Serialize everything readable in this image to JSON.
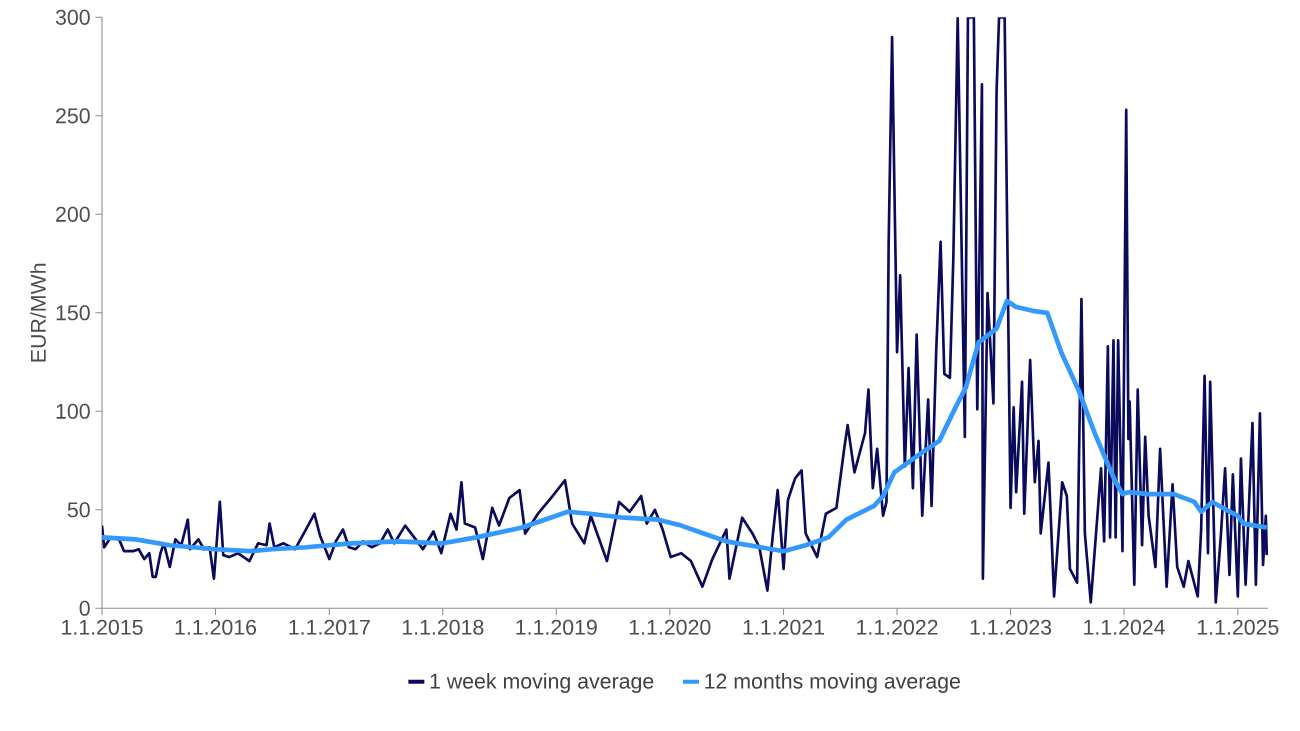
{
  "chart_data": {
    "type": "line",
    "ylabel": "EUR/MWh",
    "xlim": [
      "2015-01-01",
      "2025-04-08"
    ],
    "ylim": [
      0,
      300
    ],
    "xticks": [
      {
        "value": "2015-01-01",
        "label": "1.1.2015"
      },
      {
        "value": "2016-01-01",
        "label": "1.1.2016"
      },
      {
        "value": "2017-01-01",
        "label": "1.1.2017"
      },
      {
        "value": "2018-01-01",
        "label": "1.1.2018"
      },
      {
        "value": "2019-01-01",
        "label": "1.1.2019"
      },
      {
        "value": "2020-01-01",
        "label": "1.1.2020"
      },
      {
        "value": "2021-01-01",
        "label": "1.1.2021"
      },
      {
        "value": "2022-01-01",
        "label": "1.1.2022"
      },
      {
        "value": "2023-01-01",
        "label": "1.1.2023"
      },
      {
        "value": "2024-01-01",
        "label": "1.1.2024"
      },
      {
        "value": "2025-01-01",
        "label": "1.1.2025"
      }
    ],
    "yticks": [
      0,
      50,
      100,
      150,
      200,
      250,
      300
    ],
    "grid": false,
    "legend": "bottom",
    "series": [
      {
        "name": "1 week moving average",
        "color": "#0b0b5c",
        "x": [
          "2015-01-01",
          "2015-01-08",
          "2015-01-29",
          "2015-02-25",
          "2015-03-13",
          "2015-04-11",
          "2015-04-29",
          "2015-05-17",
          "2015-06-02",
          "2015-06-13",
          "2015-06-23",
          "2015-07-08",
          "2015-07-19",
          "2015-08-07",
          "2015-08-25",
          "2015-09-13",
          "2015-10-04",
          "2015-10-11",
          "2015-11-07",
          "2015-11-25",
          "2015-12-13",
          "2015-12-27",
          "2016-01-08",
          "2016-01-15",
          "2016-01-26",
          "2016-02-14",
          "2016-03-13",
          "2016-04-19",
          "2016-05-17",
          "2016-06-13",
          "2016-06-23",
          "2016-07-08",
          "2016-08-07",
          "2016-09-13",
          "2016-10-11",
          "2016-11-14",
          "2016-12-02",
          "2017-01-01",
          "2017-01-22",
          "2017-02-14",
          "2017-03-05",
          "2017-03-27",
          "2017-04-19",
          "2017-05-17",
          "2017-06-13",
          "2017-07-08",
          "2017-07-29",
          "2017-09-02",
          "2017-10-01",
          "2017-10-29",
          "2017-12-02",
          "2017-12-27",
          "2018-01-26",
          "2018-02-14",
          "2018-03-02",
          "2018-03-13",
          "2018-04-15",
          "2018-05-10",
          "2018-06-09",
          "2018-07-01",
          "2018-08-03",
          "2018-09-05",
          "2018-09-23",
          "2018-11-03",
          "2018-12-20",
          "2019-01-29",
          "2019-02-21",
          "2019-04-01",
          "2019-04-22",
          "2019-06-13",
          "2019-07-22",
          "2019-08-25",
          "2019-10-01",
          "2019-10-19",
          "2019-11-14",
          "2019-12-09",
          "2020-01-04",
          "2020-02-07",
          "2020-03-09",
          "2020-04-15",
          "2020-05-17",
          "2020-07-01",
          "2020-07-11",
          "2020-08-21",
          "2020-09-23",
          "2020-10-15",
          "2020-11-10",
          "2020-11-28",
          "2020-12-13",
          "2021-01-01",
          "2021-01-15",
          "2021-02-07",
          "2021-02-28",
          "2021-03-13",
          "2021-04-19",
          "2021-05-17",
          "2021-06-20",
          "2021-07-15",
          "2021-07-26",
          "2021-08-17",
          "2021-09-20",
          "2021-10-01",
          "2021-10-15",
          "2021-10-29",
          "2021-11-17",
          "2021-11-28",
          "2021-12-05",
          "2021-12-16",
          "2021-12-23",
          "2022-01-01",
          "2022-01-11",
          "2022-01-26",
          "2022-02-07",
          "2022-02-21",
          "2022-03-05",
          "2022-03-23",
          "2022-04-11",
          "2022-04-22",
          "2022-05-07",
          "2022-05-21",
          "2022-06-02",
          "2022-06-20",
          "2022-07-01",
          "2022-07-15",
          "2022-08-07",
          "2022-08-17",
          "2022-09-05",
          "2022-09-16",
          "2022-10-01",
          "2022-10-04",
          "2022-10-19",
          "2022-11-07",
          "2022-11-17",
          "2022-11-25",
          "2022-12-13",
          "2023-01-01",
          "2023-01-11",
          "2023-01-19",
          "2023-02-07",
          "2023-02-14",
          "2023-03-05",
          "2023-03-20",
          "2023-04-01",
          "2023-04-08",
          "2023-05-03",
          "2023-05-21",
          "2023-06-16",
          "2023-07-01",
          "2023-07-11",
          "2023-08-03",
          "2023-08-17",
          "2023-08-28",
          "2023-09-16",
          "2023-10-01",
          "2023-10-19",
          "2023-10-29",
          "2023-11-10",
          "2023-11-17",
          "2023-11-28",
          "2023-12-05",
          "2023-12-13",
          "2023-12-27",
          "2024-01-08",
          "2024-01-15",
          "2024-01-19",
          "2024-02-03",
          "2024-02-14",
          "2024-02-28",
          "2024-03-09",
          "2024-03-20",
          "2024-04-11",
          "2024-04-26",
          "2024-05-17",
          "2024-06-05",
          "2024-06-20",
          "2024-07-11",
          "2024-07-26",
          "2024-08-25",
          "2024-09-05",
          "2024-09-16",
          "2024-09-27",
          "2024-10-04",
          "2024-10-22",
          "2024-11-07",
          "2024-11-21",
          "2024-12-05",
          "2024-12-16",
          "2025-01-01",
          "2025-01-11",
          "2025-01-26",
          "2025-02-17",
          "2025-02-28",
          "2025-03-13",
          "2025-03-23",
          "2025-04-01",
          "2025-04-04"
        ],
        "values": [
          42,
          31,
          36,
          35,
          29,
          29,
          30,
          25,
          28,
          16,
          16,
          28,
          33,
          21,
          35,
          32,
          45,
          30,
          35,
          30,
          31,
          15,
          40,
          54,
          27,
          26,
          28,
          24,
          33,
          32,
          43,
          31,
          33,
          30,
          38,
          48,
          37,
          25,
          34,
          40,
          31,
          30,
          34,
          31,
          33,
          40,
          33,
          42,
          36,
          30,
          39,
          28,
          48,
          40,
          64,
          43,
          41,
          25,
          51,
          42,
          56,
          60,
          38,
          48,
          57,
          65,
          43,
          33,
          47,
          24,
          54,
          49,
          57,
          43,
          50,
          40,
          26,
          28,
          24,
          11,
          25,
          40,
          15,
          46,
          38,
          31,
          9,
          38,
          60,
          20,
          55,
          66,
          70,
          38,
          26,
          48,
          51,
          81,
          93,
          69,
          89,
          111,
          61,
          81,
          47,
          54,
          186,
          290,
          218,
          130,
          169,
          72,
          122,
          61,
          139,
          47,
          106,
          52,
          131,
          186,
          119,
          117,
          178,
          300,
          87,
          300,
          300,
          101,
          266,
          15,
          160,
          104,
          262,
          300,
          300,
          51,
          102,
          59,
          115,
          48,
          126,
          64,
          85,
          38,
          74,
          6,
          64,
          57,
          20,
          13,
          157,
          38,
          3,
          34,
          71,
          34,
          133,
          36,
          136,
          36,
          136,
          29,
          253,
          86,
          105,
          12,
          111,
          32,
          87,
          47,
          21,
          81,
          11,
          63,
          21,
          11,
          24,
          6,
          40,
          118,
          28,
          115,
          3,
          36,
          71,
          17,
          68,
          6,
          76,
          12,
          94,
          12,
          99,
          22,
          47,
          27
        ]
      },
      {
        "name": "12 months moving average",
        "color": "#3399ff",
        "x": [
          "2015-01-01",
          "2015-04-19",
          "2015-08-07",
          "2016-01-01",
          "2016-04-19",
          "2016-07-01",
          "2016-10-19",
          "2017-03-13",
          "2017-08-07",
          "2018-01-01",
          "2018-04-19",
          "2018-09-13",
          "2019-01-01",
          "2019-02-07",
          "2019-04-19",
          "2019-08-07",
          "2019-11-25",
          "2020-02-07",
          "2020-04-19",
          "2020-07-01",
          "2020-10-19",
          "2021-01-01",
          "2021-03-13",
          "2021-05-25",
          "2021-07-22",
          "2021-10-19",
          "2021-11-17",
          "2021-12-23",
          "2022-03-13",
          "2022-05-17",
          "2022-07-08",
          "2022-08-10",
          "2022-09-20",
          "2022-11-17",
          "2022-12-20",
          "2023-01-19",
          "2023-03-13",
          "2023-04-29",
          "2023-06-13",
          "2023-08-07",
          "2023-10-01",
          "2023-12-02",
          "2023-12-27",
          "2024-01-19",
          "2024-03-20",
          "2024-06-09",
          "2024-08-14",
          "2024-09-05",
          "2024-10-11",
          "2024-11-25",
          "2025-01-01",
          "2025-01-19",
          "2025-04-04"
        ],
        "values": [
          36,
          35,
          32,
          30,
          29,
          30,
          31,
          33,
          34,
          33,
          36,
          41,
          47,
          49,
          48,
          46,
          45,
          42,
          38,
          34,
          31,
          29,
          32,
          36,
          45,
          52,
          57,
          69,
          78,
          85,
          102,
          112,
          135,
          142,
          156,
          153,
          151,
          150,
          130,
          111,
          88,
          65,
          58,
          59,
          58,
          58,
          54,
          49,
          54,
          50,
          47,
          43,
          41
        ]
      }
    ]
  }
}
